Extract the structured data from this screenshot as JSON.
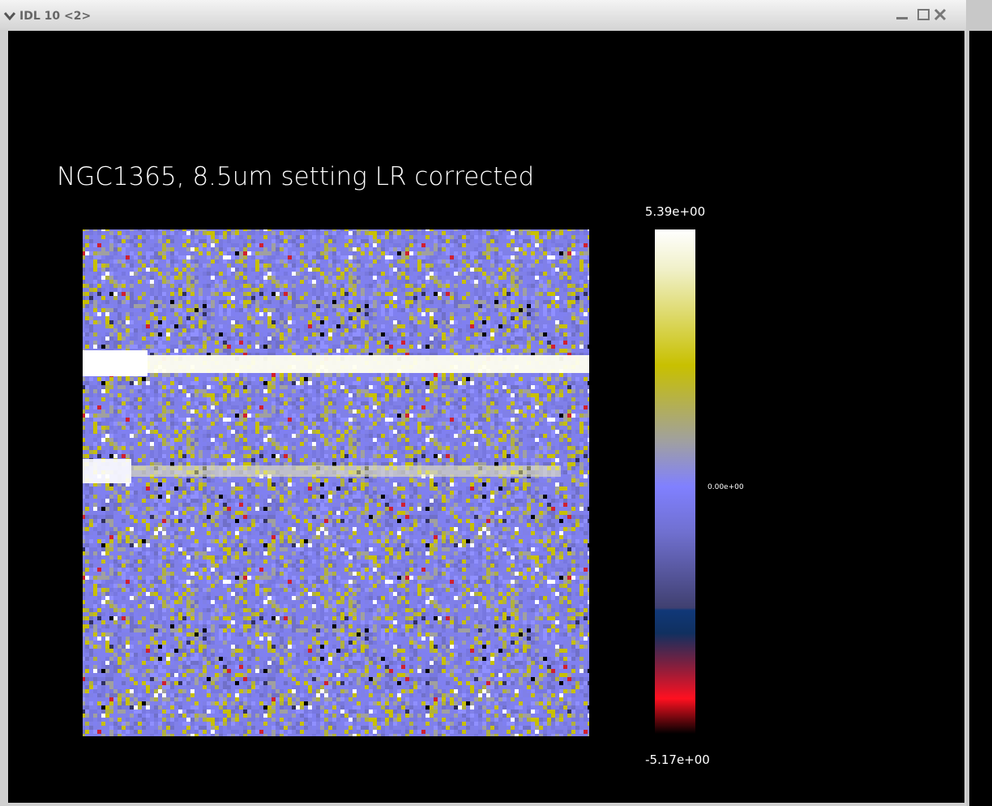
{
  "window": {
    "title": "IDL 10 <2>"
  },
  "plot": {
    "title": "NGC1365, 8.5um setting LR corrected",
    "colorbar": {
      "max_label": "5.39e+00",
      "mid_label": "0.00e+00",
      "min_label": "-5.17e+00"
    }
  }
}
